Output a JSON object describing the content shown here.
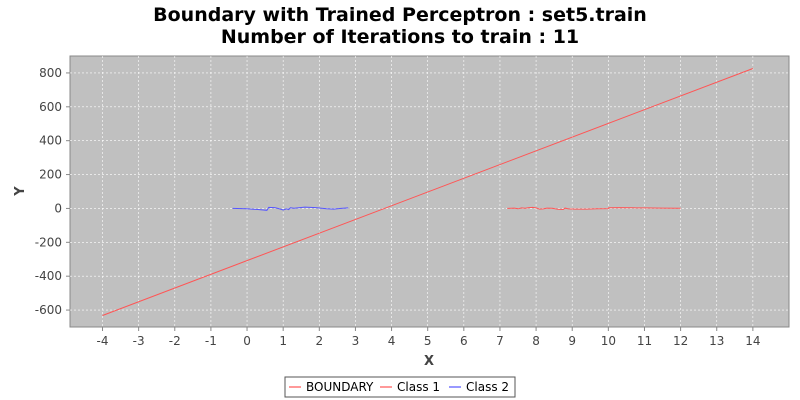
{
  "chart_data": {
    "type": "line",
    "title": "Boundary with Trained Perceptron : set5.train",
    "subtitle": "Number of Iterations to train : 11",
    "xlabel": "X",
    "ylabel": "Y",
    "xlim": [
      -4.9,
      15.0
    ],
    "ylim": [
      -700,
      900
    ],
    "xticks": [
      -4,
      -3,
      -2,
      -1,
      0,
      1,
      2,
      3,
      4,
      5,
      6,
      7,
      8,
      9,
      10,
      11,
      12,
      13,
      14
    ],
    "yticks": [
      -600,
      -400,
      -200,
      0,
      200,
      400,
      600,
      800
    ],
    "grid": true,
    "plot_background": "#c0c0c0",
    "legend_position": "bottom-center",
    "series": [
      {
        "name": "BOUNDARY",
        "color": "#ff5555",
        "x": [
          -4,
          14
        ],
        "y": [
          -632,
          826
        ]
      },
      {
        "name": "Class 1",
        "color": "#ff5555",
        "x": [
          7.2,
          7.4,
          7.5,
          7.6,
          7.7,
          7.8,
          7.9,
          8.0,
          8.1,
          8.2,
          8.3,
          8.45,
          8.6,
          8.75,
          8.8,
          8.9,
          9.1,
          9.4,
          9.7,
          10.0,
          10.01,
          10.3,
          10.7,
          11.0,
          11.5,
          12.0
        ],
        "y": [
          0,
          2,
          -2,
          3,
          1,
          5,
          6,
          3,
          -4,
          -3,
          2,
          1,
          -5,
          -6,
          2,
          -3,
          -4,
          -4,
          -2,
          -1,
          4,
          5,
          4,
          3,
          2,
          1
        ]
      },
      {
        "name": "Class 2",
        "color": "#5555ff",
        "x": [
          -0.4,
          0.0,
          0.3,
          0.55,
          0.6,
          0.75,
          0.8,
          0.9,
          1.0,
          1.1,
          1.15,
          1.2,
          1.3,
          1.4,
          1.6,
          1.9,
          2.2,
          2.4,
          2.6,
          2.8
        ],
        "y": [
          0,
          -2,
          -6,
          -11,
          6,
          5,
          3,
          -3,
          -9,
          -2,
          -7,
          4,
          1,
          3,
          8,
          5,
          -2,
          -4,
          0,
          3
        ]
      }
    ]
  }
}
